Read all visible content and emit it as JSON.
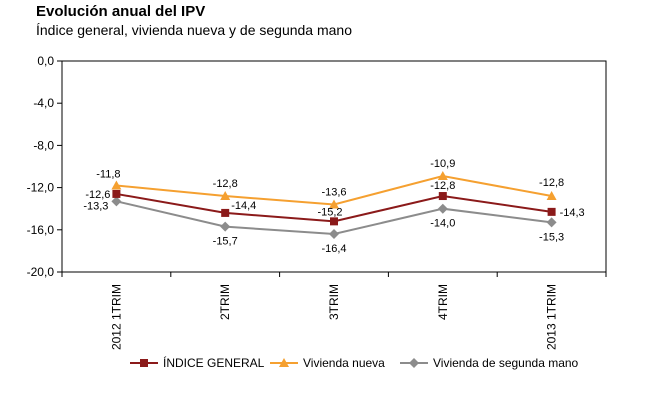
{
  "chart_data": {
    "type": "line",
    "title": "Evolución anual del IPV",
    "subtitle": "Índice general, vivienda nueva y de segunda mano",
    "categories": [
      "2012 1TRIM",
      "2TRIM",
      "3TRIM",
      "4TRIM",
      "2013 1TRIM"
    ],
    "ylim": [
      -20,
      0
    ],
    "yticks": [
      0,
      -4,
      -8,
      -12,
      -16,
      -20
    ],
    "ytick_labels": [
      "0,0",
      "-4,0",
      "-8,0",
      "-12,0",
      "-16,0",
      "-20,0"
    ],
    "grid": false,
    "legend": "bottom",
    "series": [
      {
        "name": "ÍNDICE GENERAL",
        "color": "#8B1A1A",
        "marker": "square",
        "values": [
          -12.6,
          -14.4,
          -15.2,
          -12.8,
          -14.3
        ],
        "labels": [
          "-12,6",
          "-14,4",
          "-15,2",
          "-12,8",
          "-14,3"
        ]
      },
      {
        "name": "Vivienda nueva",
        "color": "#F5A030",
        "marker": "triangle",
        "values": [
          -11.8,
          -12.8,
          -13.6,
          -10.9,
          -12.8
        ],
        "labels": [
          "-11,8",
          "-12,8",
          "-13,6",
          "-10,9",
          "-12,8"
        ]
      },
      {
        "name": "Vivienda de segunda mano",
        "color": "#8C8C8C",
        "marker": "diamond",
        "values": [
          -13.3,
          -15.7,
          -16.4,
          -14.0,
          -15.3
        ],
        "labels": [
          "-13,3",
          "-15,7",
          "-16,4",
          "-14,0",
          "-15,3"
        ]
      }
    ]
  }
}
